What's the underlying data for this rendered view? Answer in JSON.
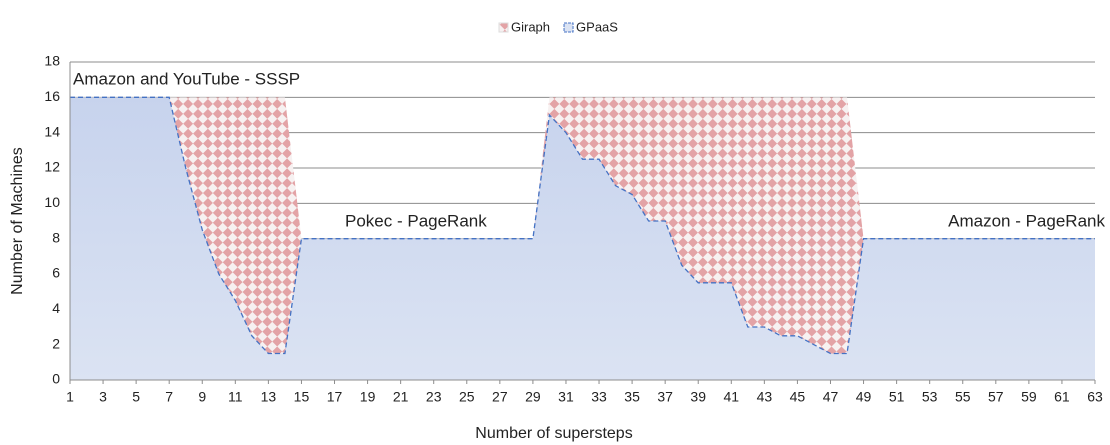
{
  "chart_data": {
    "type": "area",
    "x": [
      1,
      2,
      3,
      4,
      5,
      6,
      7,
      8,
      9,
      10,
      11,
      12,
      13,
      14,
      15,
      16,
      17,
      18,
      19,
      20,
      21,
      22,
      23,
      24,
      25,
      26,
      27,
      28,
      29,
      30,
      31,
      32,
      33,
      34,
      35,
      36,
      37,
      38,
      39,
      40,
      41,
      42,
      43,
      44,
      45,
      46,
      47,
      48,
      49,
      50,
      51,
      52,
      53,
      54,
      55,
      56,
      57,
      58,
      59,
      60,
      61,
      62,
      63
    ],
    "series": [
      {
        "name": "Giraph",
        "color": "#e8a0a4",
        "values": [
          16,
          16,
          16,
          16,
          16,
          16,
          16,
          16,
          16,
          16,
          16,
          16,
          16,
          16,
          8,
          8,
          8,
          8,
          8,
          8,
          8,
          8,
          8,
          8,
          8,
          8,
          8,
          8,
          8,
          16,
          16,
          16,
          16,
          16,
          16,
          16,
          16,
          16,
          16,
          16,
          16,
          16,
          16,
          16,
          16,
          16,
          16,
          16,
          8,
          8,
          8,
          8,
          8,
          8,
          8,
          8,
          8,
          8,
          8,
          8,
          8,
          8,
          8
        ]
      },
      {
        "name": "GPaaS",
        "color": "#4472c4",
        "values": [
          16,
          16,
          16,
          16,
          16,
          16,
          16,
          12,
          8.5,
          6,
          4.5,
          2.5,
          1.5,
          1.5,
          8,
          8,
          8,
          8,
          8,
          8,
          8,
          8,
          8,
          8,
          8,
          8,
          8,
          8,
          8,
          15,
          14,
          12.5,
          12.5,
          11,
          10.5,
          9,
          9,
          6.5,
          5.5,
          5.5,
          5.5,
          3,
          3,
          2.5,
          2.5,
          2,
          1.5,
          1.5,
          8,
          8,
          8,
          8,
          8,
          8,
          8,
          8,
          8,
          8,
          8,
          8,
          8,
          8,
          8
        ]
      }
    ],
    "xlim": [
      1,
      63
    ],
    "xticks": [
      1,
      3,
      5,
      7,
      9,
      11,
      13,
      15,
      17,
      19,
      21,
      23,
      25,
      27,
      29,
      31,
      33,
      35,
      37,
      39,
      41,
      43,
      45,
      47,
      49,
      51,
      53,
      55,
      57,
      59,
      61,
      63
    ],
    "ylim": [
      0,
      18
    ],
    "yticks": [
      0,
      2,
      4,
      6,
      8,
      10,
      12,
      14,
      16,
      18
    ],
    "grid": true,
    "legend": "top",
    "x_label": "Number of supersteps",
    "y_label": "Number of Machines",
    "annotations": [
      "Amazon  and YouTube - SSSP",
      "Pokec - PageRank",
      "Amazon - PageRank"
    ]
  }
}
